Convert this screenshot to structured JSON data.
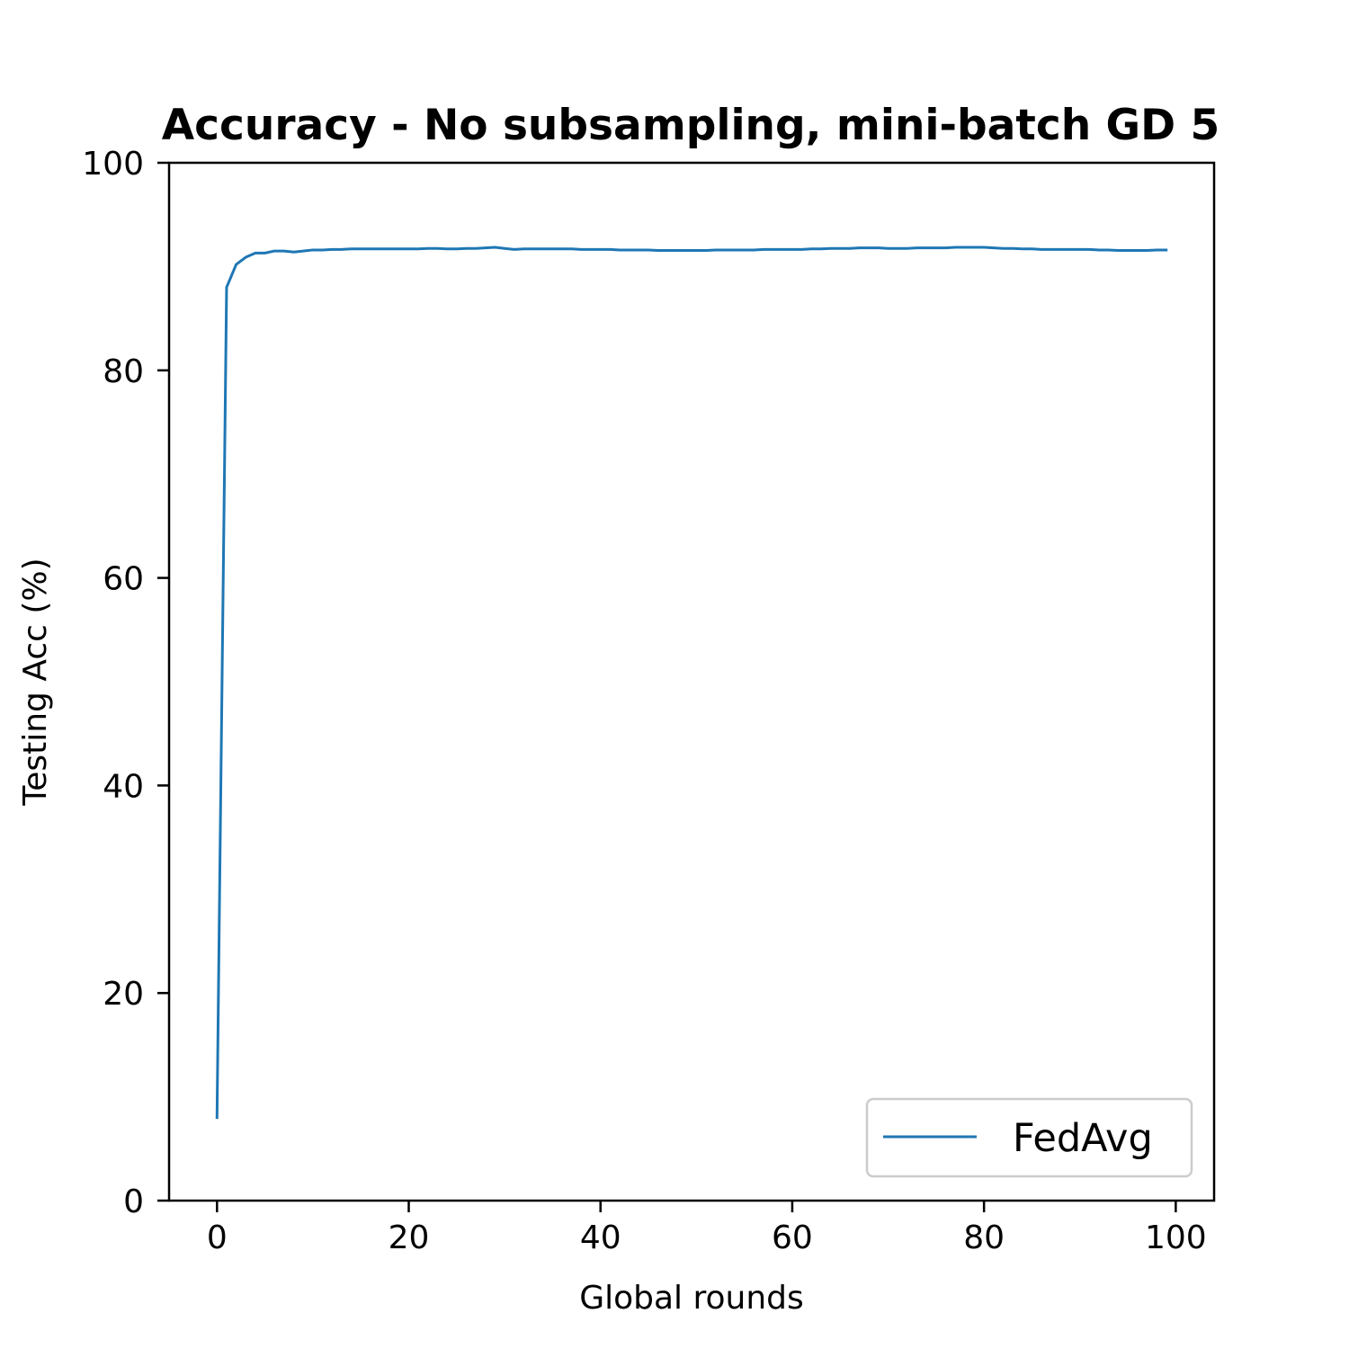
{
  "chart_data": {
    "type": "line",
    "title": "Accuracy - No subsampling, mini-batch GD 5",
    "xlabel": "Global rounds",
    "ylabel": "Testing Acc (%)",
    "xlim": [
      -5,
      104
    ],
    "ylim": [
      0,
      100
    ],
    "xticks": [
      0,
      20,
      40,
      60,
      80,
      100
    ],
    "yticks": [
      0,
      20,
      40,
      60,
      80,
      100
    ],
    "xtick_labels": [
      "0",
      "20",
      "40",
      "60",
      "80",
      "100"
    ],
    "ytick_labels": [
      "0",
      "20",
      "40",
      "60",
      "80",
      "100"
    ],
    "grid": false,
    "legend_position": "lower-right",
    "series": [
      {
        "name": "FedAvg",
        "color": "#1f77b4",
        "x": [
          0,
          1,
          2,
          3,
          4,
          5,
          6,
          7,
          8,
          9,
          10,
          11,
          12,
          13,
          14,
          15,
          16,
          17,
          18,
          19,
          20,
          21,
          22,
          23,
          24,
          25,
          26,
          27,
          28,
          29,
          30,
          31,
          32,
          33,
          34,
          35,
          36,
          37,
          38,
          39,
          40,
          41,
          42,
          43,
          44,
          45,
          46,
          47,
          48,
          49,
          50,
          51,
          52,
          53,
          54,
          55,
          56,
          57,
          58,
          59,
          60,
          61,
          62,
          63,
          64,
          65,
          66,
          67,
          68,
          69,
          70,
          71,
          72,
          73,
          74,
          75,
          76,
          77,
          78,
          79,
          80,
          81,
          82,
          83,
          84,
          85,
          86,
          87,
          88,
          89,
          90,
          91,
          92,
          93,
          94,
          95,
          96,
          97,
          98,
          99
        ],
        "values": [
          8.0,
          88.0,
          90.2,
          90.9,
          91.3,
          91.3,
          91.5,
          91.5,
          91.4,
          91.5,
          91.6,
          91.6,
          91.65,
          91.65,
          91.7,
          91.7,
          91.7,
          91.7,
          91.7,
          91.7,
          91.7,
          91.7,
          91.75,
          91.75,
          91.7,
          91.7,
          91.75,
          91.75,
          91.8,
          91.85,
          91.75,
          91.65,
          91.7,
          91.7,
          91.7,
          91.7,
          91.7,
          91.7,
          91.65,
          91.65,
          91.65,
          91.65,
          91.6,
          91.6,
          91.6,
          91.6,
          91.55,
          91.55,
          91.55,
          91.55,
          91.55,
          91.55,
          91.6,
          91.6,
          91.6,
          91.6,
          91.6,
          91.65,
          91.65,
          91.65,
          91.65,
          91.65,
          91.7,
          91.7,
          91.75,
          91.75,
          91.75,
          91.8,
          91.8,
          91.8,
          91.75,
          91.75,
          91.75,
          91.8,
          91.8,
          91.8,
          91.8,
          91.85,
          91.85,
          91.85,
          91.85,
          91.8,
          91.75,
          91.75,
          91.7,
          91.7,
          91.65,
          91.65,
          91.65,
          91.65,
          91.65,
          91.65,
          91.6,
          91.6,
          91.55,
          91.55,
          91.55,
          91.55,
          91.6,
          91.6
        ]
      }
    ]
  }
}
